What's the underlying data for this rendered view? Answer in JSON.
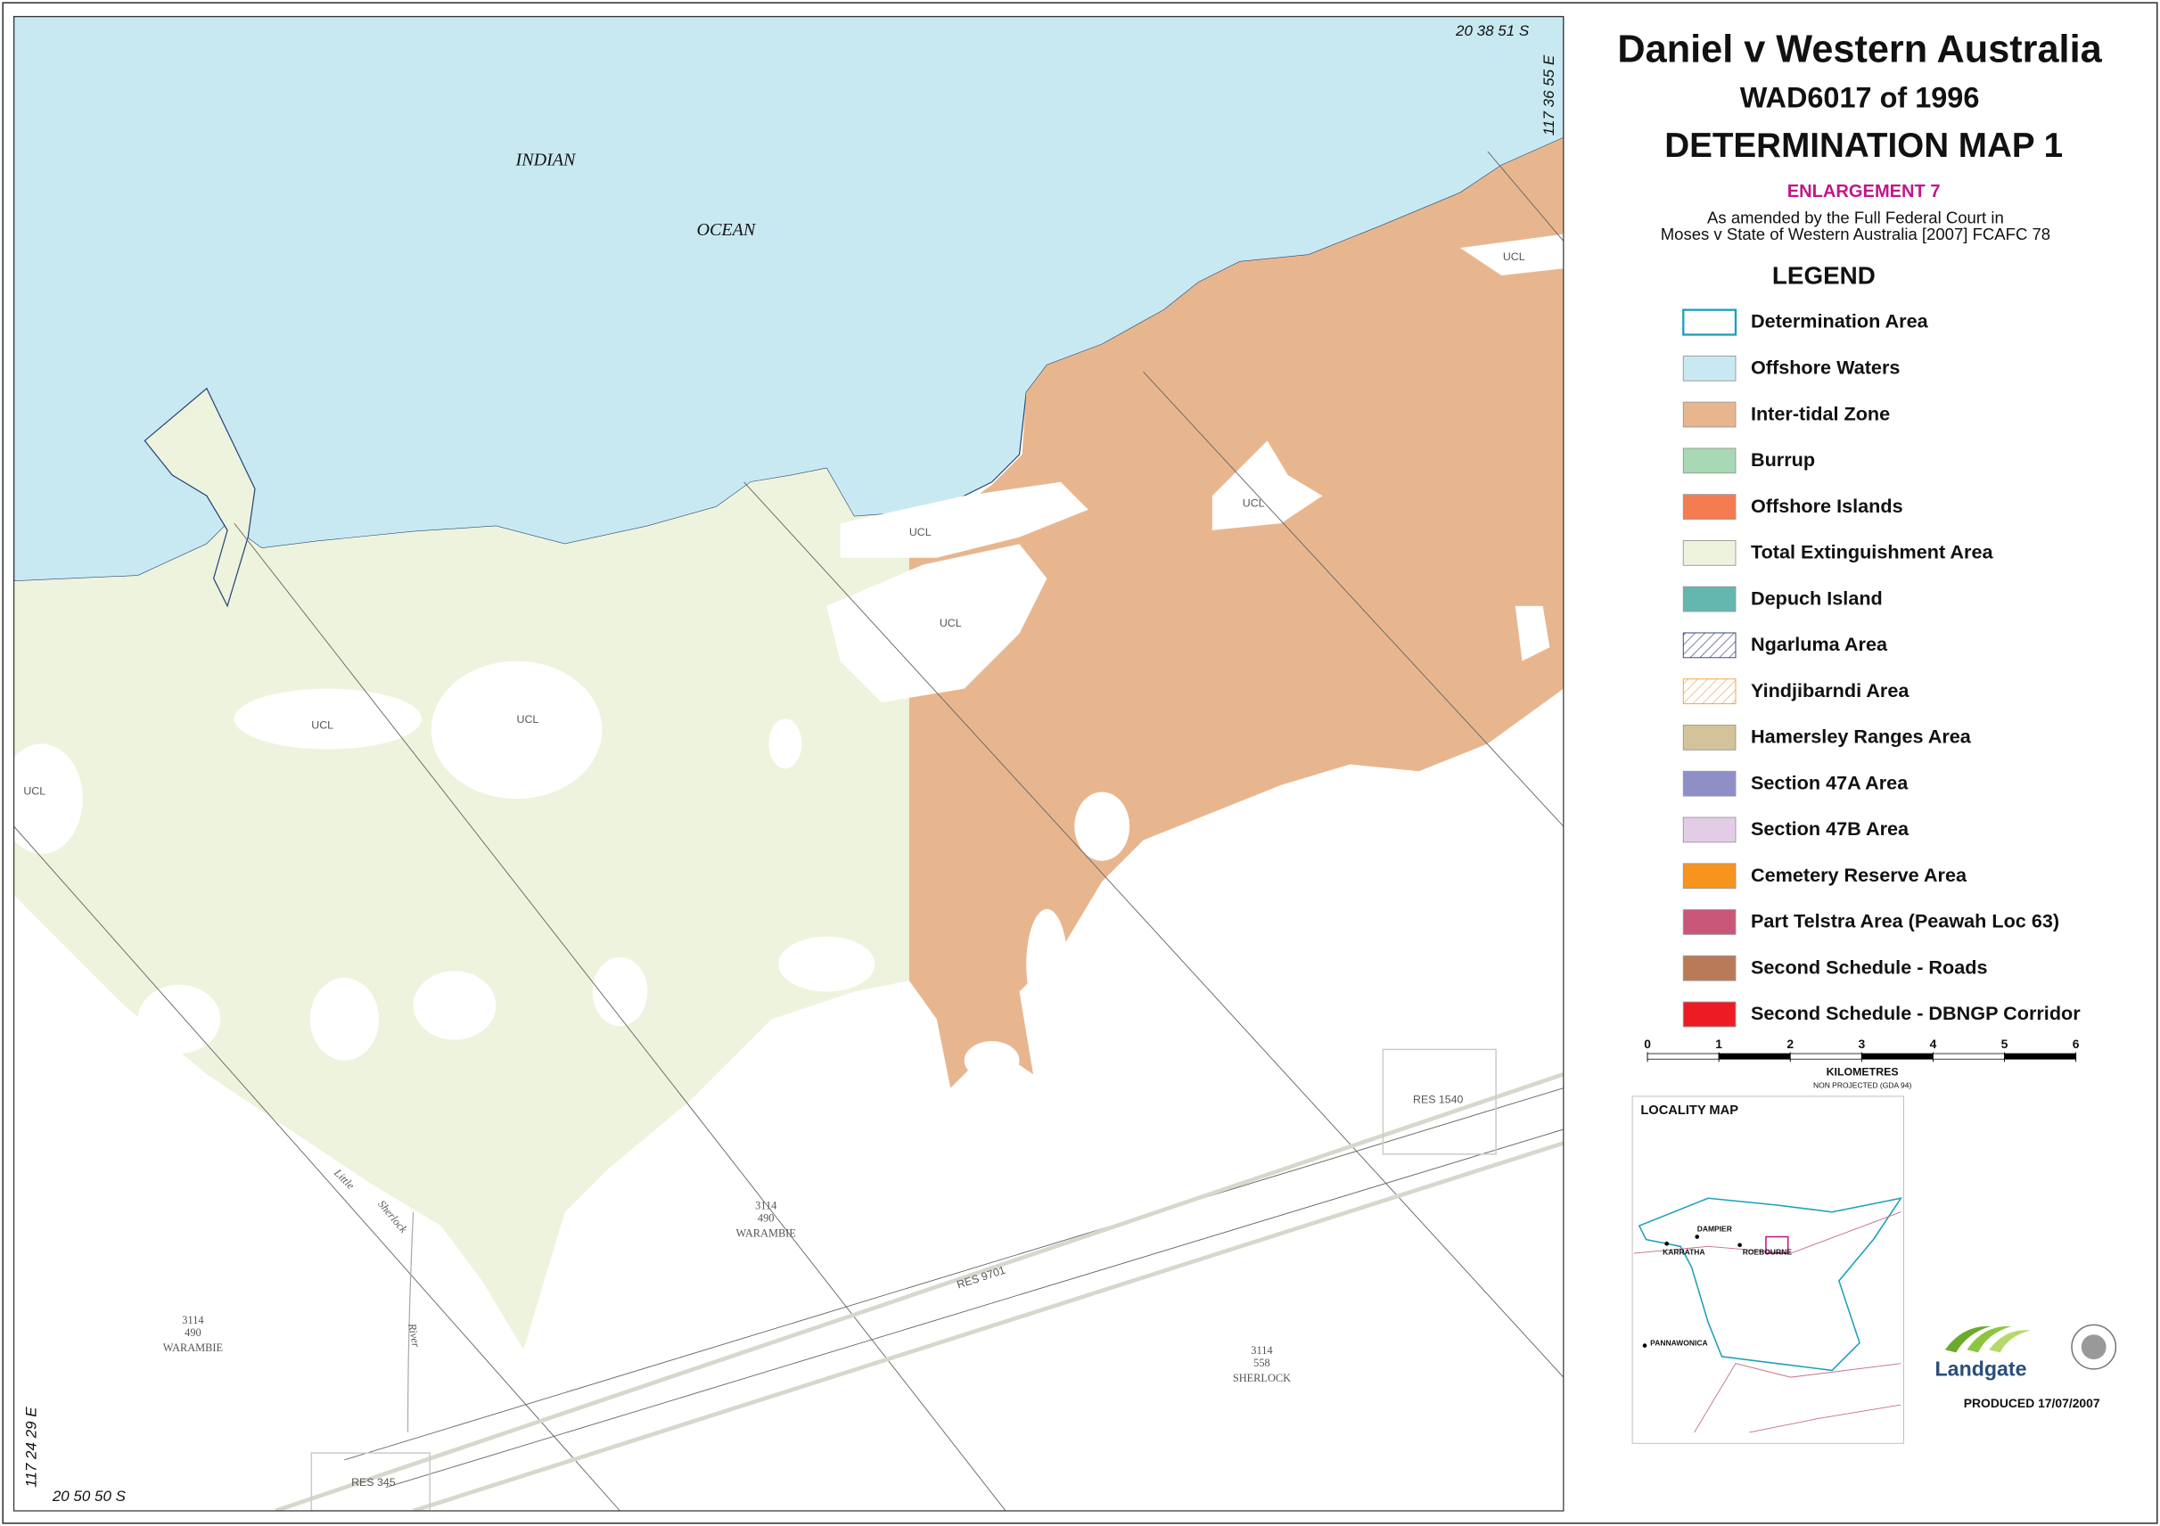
{
  "header": {
    "title": "Daniel v Western Australia",
    "case": "WAD6017 of 1996",
    "map_title": "DETERMINATION MAP 1",
    "enlargement": "ENLARGEMENT 7",
    "amendment": [
      "As amended by the Full Federal Court in",
      "Moses v State of Western Australia [2007] FCAFC 78"
    ]
  },
  "legend": {
    "title": "LEGEND",
    "items": [
      {
        "label": "Determination Area",
        "color": "#1ba0b8",
        "pattern": "outline"
      },
      {
        "label": "Offshore Waters",
        "color": "#c9e9f2",
        "pattern": "solid"
      },
      {
        "label": "Inter-tidal Zone",
        "color": "#e8b68e",
        "pattern": "solid"
      },
      {
        "label": "Burrup",
        "color": "#a8d8b4",
        "pattern": "solid"
      },
      {
        "label": "Offshore Islands",
        "color": "#f47c50",
        "pattern": "solid"
      },
      {
        "label": "Total Extinguishment Area",
        "color": "#eef3dd",
        "pattern": "solid"
      },
      {
        "label": "Depuch Island",
        "color": "#63b7ae",
        "pattern": "solid"
      },
      {
        "label": "Ngarluma Area",
        "color": "#2b3a7a",
        "pattern": "hatch"
      },
      {
        "label": "Yindjibarndi Area",
        "color": "#f0a040",
        "pattern": "hatch"
      },
      {
        "label": "Hamersley Ranges Area",
        "color": "#d3c39a",
        "pattern": "solid"
      },
      {
        "label": "Section 47A Area",
        "color": "#8f8fc8",
        "pattern": "solid"
      },
      {
        "label": "Section 47B Area",
        "color": "#e3cde6",
        "pattern": "solid"
      },
      {
        "label": "Cemetery Reserve Area",
        "color": "#f7941d",
        "pattern": "solid"
      },
      {
        "label": "Part Telstra Area (Peawah Loc 63)",
        "color": "#c9577a",
        "pattern": "solid"
      },
      {
        "label": "Second Schedule - Roads",
        "color": "#b97a57",
        "pattern": "solid"
      },
      {
        "label": "Second Schedule - DBNGP Corridor",
        "color": "#ed1c24",
        "pattern": "solid"
      }
    ]
  },
  "scale": {
    "ticks": [
      0,
      1,
      2,
      3,
      4,
      5,
      6
    ],
    "unit": "KILOMETRES",
    "projection": "NON PROJECTED (GDA 94)"
  },
  "locality_map": {
    "title": "LOCALITY  MAP",
    "places": [
      "DAMPIER",
      "KARRATHA",
      "ROEBOURNE",
      "PANNAWONICA"
    ]
  },
  "logo": "Landgate",
  "produced": "PRODUCED  17/07/2007",
  "map": {
    "coordinates": [
      "20 38 51 S",
      "117 36 55 E",
      "117 24 29 E",
      "20 50 50 S"
    ],
    "water_labels": [
      "INDIAN",
      "OCEAN"
    ],
    "ucl": [
      "UCL",
      "UCL",
      "UCL",
      "UCL",
      "UCL",
      "UCL",
      "UCL"
    ],
    "parcels": [
      [
        "3114",
        "490",
        "WARAMBIE"
      ],
      [
        "3114",
        "490",
        "WARAMBIE"
      ],
      [
        "3114",
        "558",
        "SHERLOCK"
      ]
    ],
    "features": [
      "Little",
      "Sherlock",
      "River",
      "RES 9701",
      "RES 1540",
      "RES 345"
    ]
  }
}
